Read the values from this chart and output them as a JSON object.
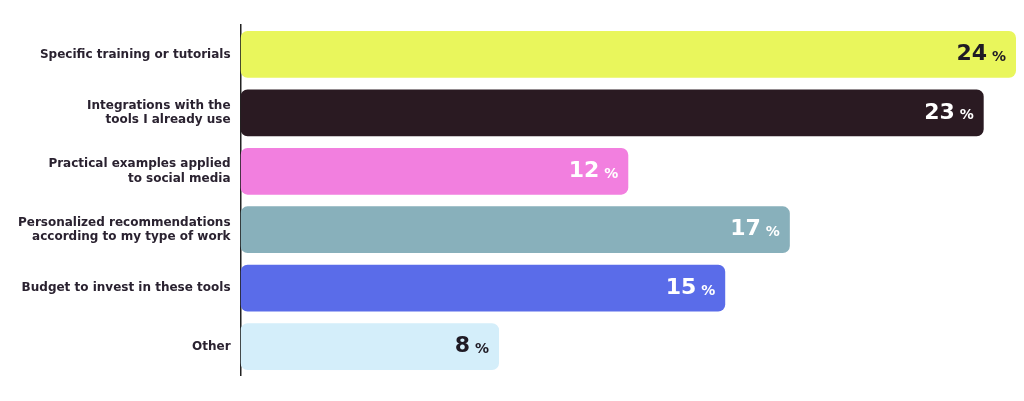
{
  "chart_data": {
    "type": "bar",
    "orientation": "horizontal",
    "categories": [
      "Specific training or tutorials",
      "Integrations with the\ntools I already use",
      "Practical examples applied\nto social media",
      "Personalized recommendations\naccording to my type of work",
      "Budget to invest in these tools",
      "Other"
    ],
    "values": [
      24,
      23,
      12,
      17,
      15,
      8
    ],
    "colors": [
      "#e9f65c",
      "#2a1a22",
      "#f27fdf",
      "#88b0bb",
      "#5a6ce9",
      "#d4eefa"
    ],
    "value_labels": [
      "24 %",
      "23 %",
      "12 %",
      "17 %",
      "15 %",
      "8 %"
    ],
    "grid": false,
    "legend": false
  }
}
